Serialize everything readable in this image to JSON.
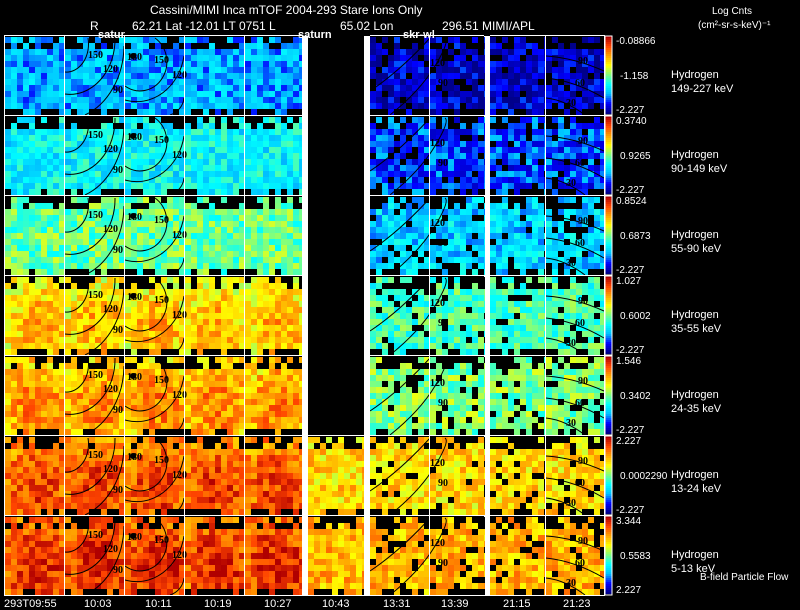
{
  "header": {
    "title_line": "Cassini/MIMI Inca mTOF  2004-293   Stare   Ions Only",
    "r_label": "R",
    "lat_lt": "62.21 Lat -12.01 LT 0751 L",
    "lon": "65.02 Lon",
    "ext": "296.51   MIMI/APL",
    "units_title": "Log Cnts",
    "units": "(cm²-sr-s-keV)⁻¹",
    "overlays": [
      "satur",
      "saturn",
      "skr-wl"
    ]
  },
  "chart_data": {
    "type": "heatmap",
    "title": "Cassini/MIMI Inca mTOF 2004-293 Stare Ions Only",
    "description_label": "B-field Particle Flow",
    "colorscale": [
      "#00008b",
      "#0000ff",
      "#00bfff",
      "#00ffff",
      "#7fff7f",
      "#ffff00",
      "#ffa500",
      "#ff4500",
      "#b00000"
    ],
    "times": [
      "293T09:55",
      "10:03",
      "10:11",
      "10:19",
      "10:27",
      "10:43",
      "13:31",
      "13:39",
      "21:15",
      "21:23"
    ],
    "contour_labels_first_group": [
      "150",
      "120",
      "90",
      "180"
    ],
    "contour_labels_last_group": [
      "90",
      "60",
      "30"
    ],
    "channels": [
      {
        "species": "Hydrogen",
        "energy": "149-227 keV",
        "max": "-0.08866",
        "mid": "-1.158",
        "min": "-2.227",
        "level": 0.25
      },
      {
        "species": "Hydrogen",
        "energy": "90-149 keV",
        "max": "0.3740",
        "mid": "0.9265",
        "min": "-2.227",
        "level": 0.35
      },
      {
        "species": "Hydrogen",
        "energy": "55-90 keV",
        "max": "0.8524",
        "mid": "0.6873",
        "min": "-2.227",
        "level": 0.48
      },
      {
        "species": "Hydrogen",
        "energy": "35-55 keV",
        "max": "1.027",
        "mid": "0.6002",
        "min": "-2.227",
        "level": 0.62
      },
      {
        "species": "Hydrogen",
        "energy": "24-35 keV",
        "max": "1.546",
        "mid": "0.3402",
        "min": "-2.227",
        "level": 0.68
      },
      {
        "species": "Hydrogen",
        "energy": "13-24 keV",
        "max": "2.227",
        "mid": "0.0002290",
        "min": "-2.227",
        "level": 0.78
      },
      {
        "species": "Hydrogen",
        "energy": "5-13 keV",
        "max": "3.344",
        "mid": "0.5583",
        "min": "2.227",
        "level": 0.82
      }
    ]
  }
}
